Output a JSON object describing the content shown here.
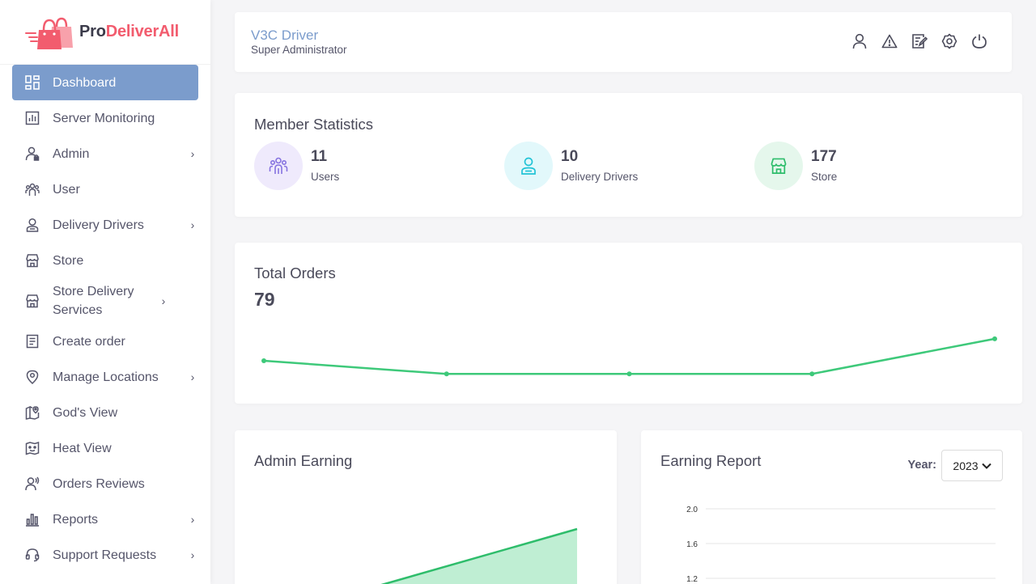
{
  "brand": {
    "name_part1": "Pro",
    "name_part2": "DeliverAll"
  },
  "sidebar": {
    "items": [
      {
        "label": "Dashboard",
        "icon": "dashboard-icon",
        "active": true,
        "submenu": false
      },
      {
        "label": "Server Monitoring",
        "icon": "bar-chart-icon",
        "submenu": false
      },
      {
        "label": "Admin",
        "icon": "admin-user-icon",
        "submenu": true
      },
      {
        "label": "User",
        "icon": "users-icon",
        "submenu": false
      },
      {
        "label": "Delivery Drivers",
        "icon": "driver-icon",
        "submenu": true
      },
      {
        "label": "Store",
        "icon": "store-icon",
        "submenu": false
      },
      {
        "label": "Store Delivery Services",
        "icon": "store-icon",
        "submenu": true
      },
      {
        "label": "Create order",
        "icon": "document-icon",
        "submenu": false
      },
      {
        "label": "Manage Locations",
        "icon": "location-pin-icon",
        "submenu": true
      },
      {
        "label": "God's View",
        "icon": "map-pin-icon",
        "submenu": false
      },
      {
        "label": "Heat View",
        "icon": "heat-map-icon",
        "submenu": false
      },
      {
        "label": "Orders Reviews",
        "icon": "review-icon",
        "submenu": false
      },
      {
        "label": "Reports",
        "icon": "reports-icon",
        "submenu": true
      },
      {
        "label": "Support Requests",
        "icon": "headset-icon",
        "submenu": true
      }
    ]
  },
  "header": {
    "user_name": "V3C Driver",
    "user_role": "Super Administrator",
    "icons": [
      "profile-icon",
      "warning-icon",
      "edit-note-icon",
      "settings-icon",
      "power-icon"
    ]
  },
  "member_stats": {
    "title": "Member Statistics",
    "items": [
      {
        "value": "11",
        "label": "Users",
        "icon": "users-icon",
        "color": "#8673e0",
        "bg": "#efeafc"
      },
      {
        "value": "10",
        "label": "Delivery Drivers",
        "icon": "driver-icon",
        "color": "#22c3d6",
        "bg": "#e2f8fb"
      },
      {
        "value": "177",
        "label": "Store",
        "icon": "store-icon",
        "color": "#2ebd6b",
        "bg": "#e5f7ec"
      }
    ]
  },
  "total_orders": {
    "title": "Total Orders",
    "value": "79",
    "line_color": "#3ec97a",
    "sparkline": [
      16,
      13,
      13,
      13,
      21
    ]
  },
  "admin_earning": {
    "title": "Admin Earning",
    "fill_color": "#bfeed3",
    "line_color": "#2ebd6b"
  },
  "earning_report": {
    "title": "Earning Report",
    "year_label": "Year:",
    "year_value": "2023"
  },
  "chart_data": [
    {
      "type": "line",
      "title": "Total Orders",
      "x": [
        1,
        2,
        3,
        4,
        5
      ],
      "values": [
        16,
        13,
        13,
        13,
        21
      ]
    },
    {
      "type": "line",
      "title": "Earning Report",
      "ylabel": "",
      "y_ticks": [
        "2.0",
        "1.6",
        "1.2"
      ],
      "grid": true,
      "values": []
    }
  ]
}
